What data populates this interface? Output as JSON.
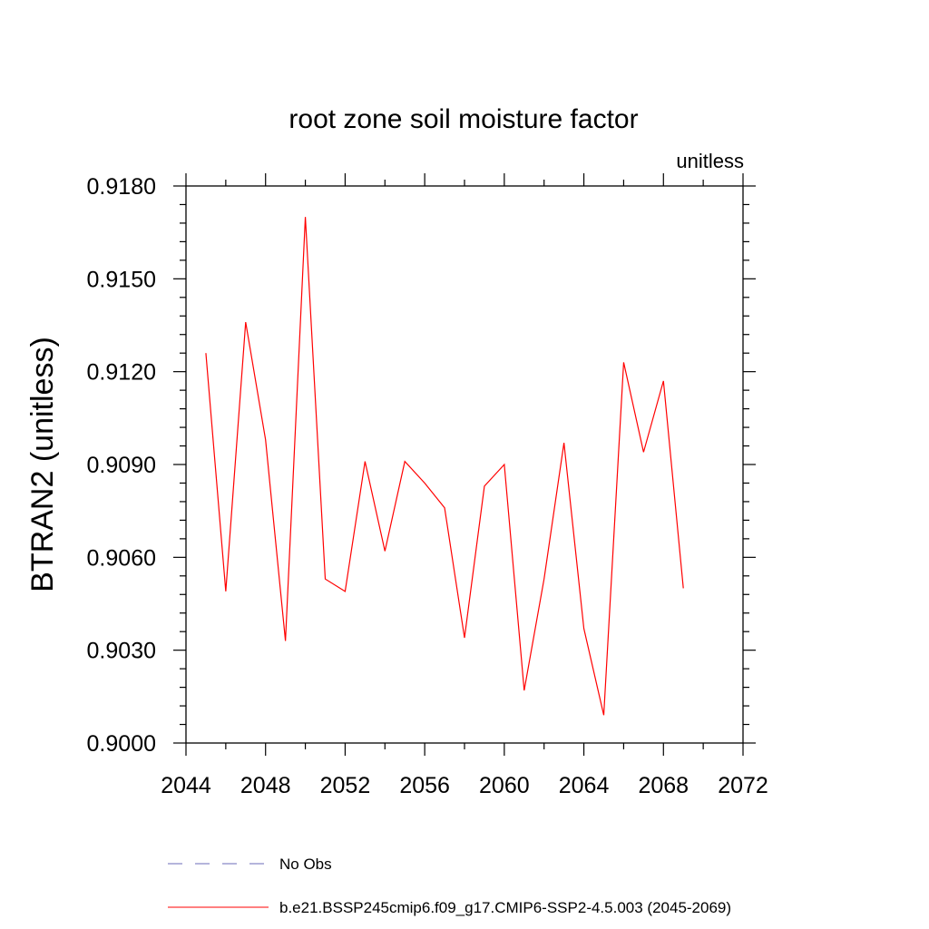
{
  "chart_data": {
    "type": "line",
    "title": "root zone soil moisture factor",
    "units_label": "unitless",
    "ylabel": "BTRAN2  (unitless)",
    "xlabel": "",
    "xlim": [
      2044,
      2072
    ],
    "ylim": [
      0.9,
      0.918
    ],
    "x_ticks": [
      "2044",
      "2048",
      "2052",
      "2056",
      "2060",
      "2064",
      "2068",
      "2072"
    ],
    "y_ticks": [
      "0.9000",
      "0.9030",
      "0.9060",
      "0.9090",
      "0.9120",
      "0.9150",
      "0.9180"
    ],
    "grid": false,
    "legend_position": "bottom",
    "series": [
      {
        "name": "b.e21.BSSP245cmip6.f09_g17.CMIP6-SSP2-4.5.003 (2045-2069)",
        "color": "#ff0000",
        "style": "solid",
        "x": [
          2045,
          2046,
          2047,
          2048,
          2049,
          2050,
          2051,
          2052,
          2053,
          2054,
          2055,
          2056,
          2057,
          2058,
          2059,
          2060,
          2061,
          2062,
          2063,
          2064,
          2065,
          2066,
          2067,
          2068,
          2069
        ],
        "values": [
          0.9126,
          0.9049,
          0.9136,
          0.9098,
          0.9033,
          0.917,
          0.9053,
          0.9049,
          0.9091,
          0.9062,
          0.9091,
          0.9084,
          0.9076,
          0.9034,
          0.9083,
          0.909,
          0.9017,
          0.9053,
          0.9097,
          0.9037,
          0.9009,
          0.9123,
          0.9094,
          0.9117,
          0.905
        ]
      }
    ],
    "legend": [
      {
        "label": "No Obs",
        "color": "#6b6bb8",
        "style": "dashed"
      },
      {
        "label": "b.e21.BSSP245cmip6.f09_g17.CMIP6-SSP2-4.5.003 (2045-2069)",
        "color": "#ff0000",
        "style": "solid"
      }
    ]
  }
}
